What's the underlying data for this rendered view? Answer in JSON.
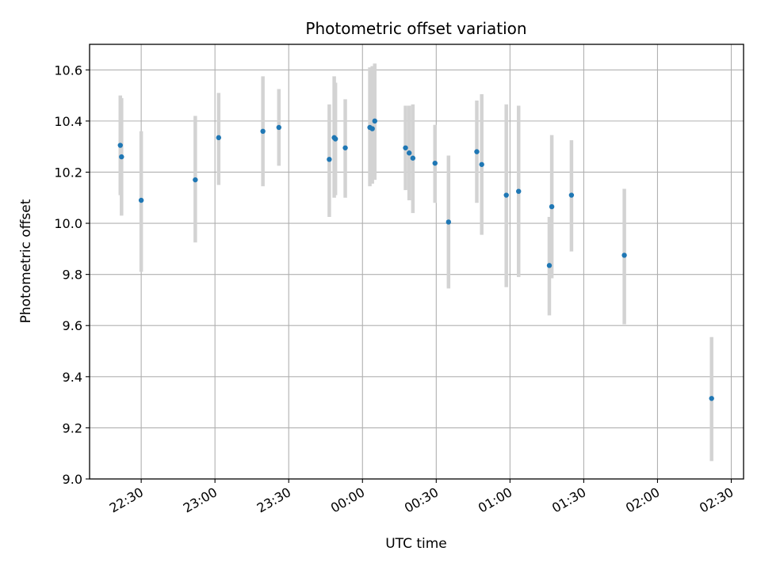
{
  "chart_data": {
    "type": "scatter",
    "title": "Photometric offset variation",
    "xlabel": "UTC time",
    "ylabel": "Photometric offset",
    "x_unit": "UTC clock time (HH:MM); times after midnight fall on the following day",
    "xlim": [
      "22:09",
      "02:35"
    ],
    "ylim": [
      9.0,
      10.7
    ],
    "grid": true,
    "legend": "none",
    "x_ticks": [
      "22:30",
      "23:00",
      "23:30",
      "00:00",
      "00:30",
      "01:00",
      "01:30",
      "02:00",
      "02:30"
    ],
    "y_ticks": [
      "9.0",
      "9.2",
      "9.4",
      "9.6",
      "9.8",
      "10.0",
      "10.2",
      "10.4",
      "10.6"
    ],
    "colors": {
      "point": "#1f77b4",
      "errorbar": "#d3d3d3",
      "grid": "#b0b0b0"
    },
    "points": [
      {
        "t": "22:21.5",
        "y": 10.305,
        "lo": 10.11,
        "hi": 10.5
      },
      {
        "t": "22:22.0",
        "y": 10.26,
        "lo": 10.03,
        "hi": 10.49
      },
      {
        "t": "22:30.0",
        "y": 10.09,
        "lo": 9.81,
        "hi": 10.36
      },
      {
        "t": "22:52.0",
        "y": 10.17,
        "lo": 9.925,
        "hi": 10.42
      },
      {
        "t": "23:01.5",
        "y": 10.335,
        "lo": 10.15,
        "hi": 10.51
      },
      {
        "t": "23:19.5",
        "y": 10.36,
        "lo": 10.145,
        "hi": 10.575
      },
      {
        "t": "23:26.0",
        "y": 10.375,
        "lo": 10.225,
        "hi": 10.525
      },
      {
        "t": "23:46.5",
        "y": 10.25,
        "lo": 10.025,
        "hi": 10.465
      },
      {
        "t": "23:48.5",
        "y": 10.335,
        "lo": 10.1,
        "hi": 10.575
      },
      {
        "t": "23:49.0",
        "y": 10.33,
        "lo": 10.11,
        "hi": 10.55
      },
      {
        "t": "23:53.0",
        "y": 10.295,
        "lo": 10.1,
        "hi": 10.485
      },
      {
        "t": "00:03.0",
        "y": 10.375,
        "lo": 10.145,
        "hi": 10.61
      },
      {
        "t": "00:04.0",
        "y": 10.37,
        "lo": 10.155,
        "hi": 10.615
      },
      {
        "t": "00:05.0",
        "y": 10.4,
        "lo": 10.17,
        "hi": 10.625
      },
      {
        "t": "00:17.5",
        "y": 10.295,
        "lo": 10.13,
        "hi": 10.46
      },
      {
        "t": "00:19.0",
        "y": 10.275,
        "lo": 10.09,
        "hi": 10.46
      },
      {
        "t": "00:20.5",
        "y": 10.255,
        "lo": 10.04,
        "hi": 10.465
      },
      {
        "t": "00:29.5",
        "y": 10.235,
        "lo": 10.08,
        "hi": 10.385
      },
      {
        "t": "00:35.0",
        "y": 10.005,
        "lo": 9.745,
        "hi": 10.265
      },
      {
        "t": "00:46.5",
        "y": 10.28,
        "lo": 10.08,
        "hi": 10.48
      },
      {
        "t": "00:48.5",
        "y": 10.23,
        "lo": 9.955,
        "hi": 10.505
      },
      {
        "t": "00:58.5",
        "y": 10.11,
        "lo": 9.75,
        "hi": 10.465
      },
      {
        "t": "01:03.5",
        "y": 10.125,
        "lo": 9.79,
        "hi": 10.46
      },
      {
        "t": "01:16.0",
        "y": 9.835,
        "lo": 9.64,
        "hi": 10.025
      },
      {
        "t": "01:17.0",
        "y": 10.065,
        "lo": 9.785,
        "hi": 10.345
      },
      {
        "t": "01:25.0",
        "y": 10.11,
        "lo": 9.89,
        "hi": 10.325
      },
      {
        "t": "01:46.5",
        "y": 9.875,
        "lo": 9.605,
        "hi": 10.135
      },
      {
        "t": "02:22.0",
        "y": 9.315,
        "lo": 9.07,
        "hi": 9.555
      }
    ]
  }
}
